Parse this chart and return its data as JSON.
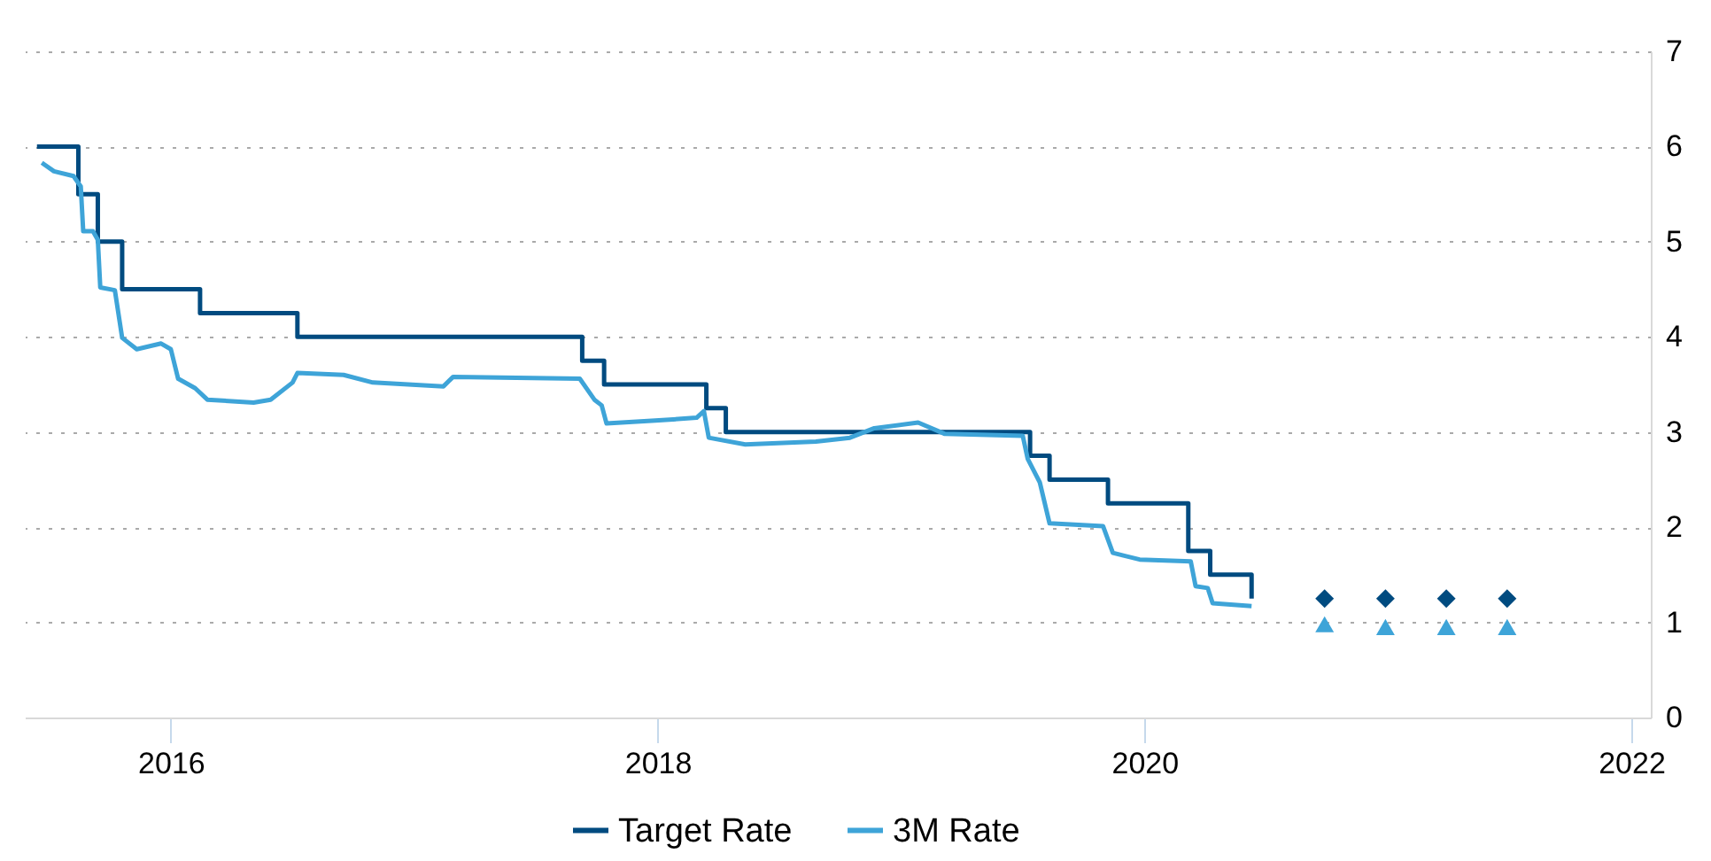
{
  "chart_data": {
    "type": "line",
    "xlim": [
      2015.4,
      2022.08
    ],
    "xticks": [
      2016,
      2018,
      2020,
      2022
    ],
    "ylim": [
      0,
      7
    ],
    "yticks": [
      0,
      1,
      2,
      3,
      4,
      5,
      6,
      7
    ],
    "grid": "y",
    "legend": "bottom",
    "series": [
      {
        "name": "Target Rate",
        "type": "step",
        "color": "#004b80",
        "x": [
          2015.45,
          2015.62,
          2015.7,
          2015.8,
          2016.12,
          2016.52,
          2017.69,
          2017.78,
          2018.2,
          2018.28,
          2019.53,
          2019.61,
          2019.85,
          2020.18,
          2020.27,
          2020.44
        ],
        "values": [
          6.0,
          5.5,
          5.0,
          4.5,
          4.25,
          4.0,
          3.75,
          3.5,
          3.25,
          3.0,
          2.75,
          2.5,
          2.25,
          1.75,
          1.5,
          1.25
        ]
      },
      {
        "name": "3M Rate",
        "type": "line",
        "color": "#3ea4d8",
        "x": [
          2015.47,
          2015.52,
          2015.6,
          2015.63,
          2015.64,
          2015.68,
          2015.7,
          2015.71,
          2015.77,
          2015.8,
          2015.86,
          2015.96,
          2016.0,
          2016.03,
          2016.1,
          2016.15,
          2016.34,
          2016.41,
          2016.5,
          2016.52,
          2016.71,
          2016.83,
          2017.12,
          2017.16,
          2017.68,
          2017.74,
          2017.77,
          2017.79,
          2017.99,
          2018.16,
          2018.19,
          2018.21,
          2018.36,
          2018.65,
          2018.79,
          2018.89,
          2019.07,
          2019.18,
          2019.5,
          2019.52,
          2019.57,
          2019.61,
          2019.83,
          2019.87,
          2019.98,
          2020.19,
          2020.21,
          2020.26,
          2020.28,
          2020.44
        ],
        "values": [
          5.83,
          5.74,
          5.69,
          5.58,
          5.11,
          5.11,
          5.02,
          4.52,
          4.49,
          3.99,
          3.87,
          3.93,
          3.87,
          3.56,
          3.46,
          3.34,
          3.31,
          3.34,
          3.52,
          3.62,
          3.6,
          3.52,
          3.48,
          3.58,
          3.56,
          3.34,
          3.28,
          3.09,
          3.12,
          3.15,
          3.22,
          2.94,
          2.87,
          2.9,
          2.94,
          3.04,
          3.1,
          2.98,
          2.96,
          2.72,
          2.47,
          2.04,
          2.01,
          1.73,
          1.66,
          1.64,
          1.38,
          1.36,
          1.2,
          1.17
        ]
      },
      {
        "type": "scatter",
        "marker": "diamond",
        "color": "#004b80",
        "x": [
          2020.74,
          2020.99,
          2021.24,
          2021.49
        ],
        "values": [
          1.25,
          1.25,
          1.25,
          1.25
        ]
      },
      {
        "type": "scatter",
        "marker": "triangle",
        "color": "#3ea4d8",
        "x": [
          2020.74,
          2020.99,
          2021.24,
          2021.49
        ],
        "values": [
          0.98,
          0.95,
          0.95,
          0.95
        ]
      }
    ]
  }
}
